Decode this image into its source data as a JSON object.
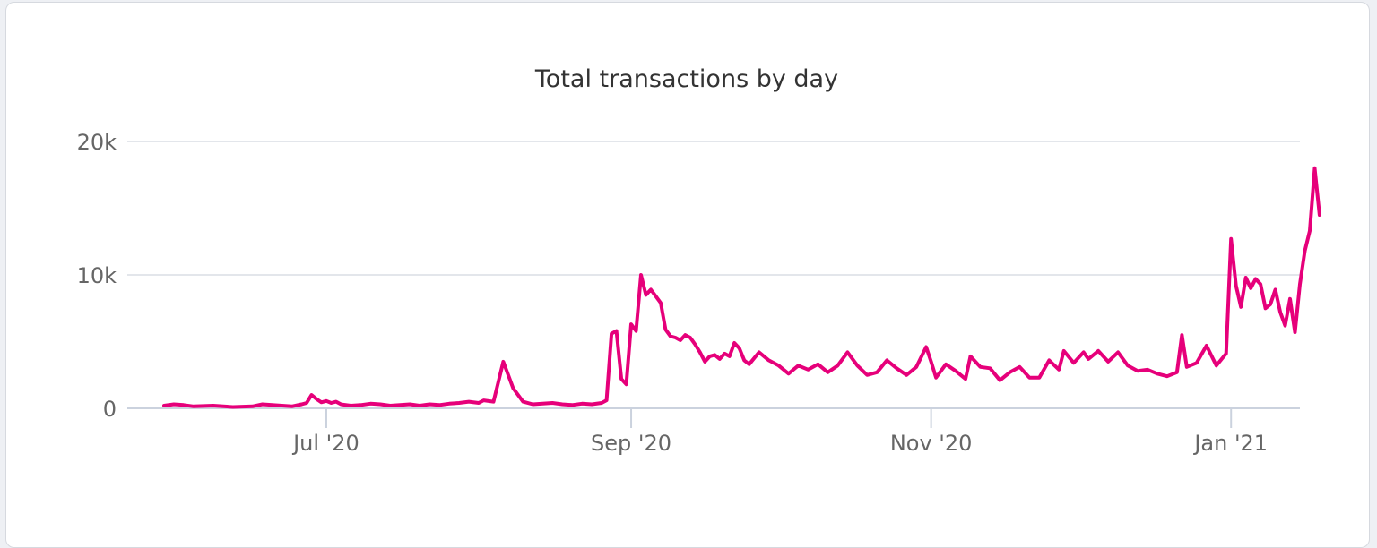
{
  "chart_data": {
    "type": "line",
    "title": "Total transactions by day",
    "xlabel": "",
    "ylabel": "",
    "x_range": [
      "2020-05-27",
      "2021-01-15"
    ],
    "ylim": [
      0,
      20000
    ],
    "y_ticks": [
      0,
      10000,
      20000
    ],
    "y_tick_labels": [
      "0",
      "10k",
      "20k"
    ],
    "x_ticks": [
      "2020-07-01",
      "2020-09-01",
      "2020-11-01",
      "2021-01-01"
    ],
    "x_tick_labels": [
      "Jul '20",
      "Sep '20",
      "Nov '20",
      "Jan '21"
    ],
    "grid": true,
    "legend": "none",
    "line_color": "#e6007a",
    "series": [
      {
        "points": [
          [
            "2020-05-29",
            200
          ],
          [
            "2020-05-31",
            300
          ],
          [
            "2020-06-02",
            250
          ],
          [
            "2020-06-04",
            150
          ],
          [
            "2020-06-08",
            200
          ],
          [
            "2020-06-12",
            100
          ],
          [
            "2020-06-16",
            150
          ],
          [
            "2020-06-18",
            300
          ],
          [
            "2020-06-22",
            200
          ],
          [
            "2020-06-24",
            150
          ],
          [
            "2020-06-26",
            300
          ],
          [
            "2020-06-27",
            400
          ],
          [
            "2020-06-28",
            1000
          ],
          [
            "2020-06-29",
            700
          ],
          [
            "2020-06-30",
            450
          ],
          [
            "2020-07-01",
            550
          ],
          [
            "2020-07-02",
            400
          ],
          [
            "2020-07-03",
            500
          ],
          [
            "2020-07-04",
            300
          ],
          [
            "2020-07-06",
            200
          ],
          [
            "2020-07-08",
            250
          ],
          [
            "2020-07-10",
            350
          ],
          [
            "2020-07-12",
            300
          ],
          [
            "2020-07-14",
            200
          ],
          [
            "2020-07-16",
            250
          ],
          [
            "2020-07-18",
            300
          ],
          [
            "2020-07-20",
            200
          ],
          [
            "2020-07-22",
            300
          ],
          [
            "2020-07-24",
            250
          ],
          [
            "2020-07-26",
            350
          ],
          [
            "2020-07-28",
            400
          ],
          [
            "2020-07-30",
            500
          ],
          [
            "2020-08-01",
            400
          ],
          [
            "2020-08-02",
            600
          ],
          [
            "2020-08-04",
            500
          ],
          [
            "2020-08-06",
            3500
          ],
          [
            "2020-08-08",
            1500
          ],
          [
            "2020-08-10",
            500
          ],
          [
            "2020-08-12",
            300
          ],
          [
            "2020-08-14",
            350
          ],
          [
            "2020-08-16",
            400
          ],
          [
            "2020-08-18",
            300
          ],
          [
            "2020-08-20",
            250
          ],
          [
            "2020-08-22",
            350
          ],
          [
            "2020-08-24",
            300
          ],
          [
            "2020-08-26",
            400
          ],
          [
            "2020-08-27",
            600
          ],
          [
            "2020-08-28",
            5600
          ],
          [
            "2020-08-29",
            5800
          ],
          [
            "2020-08-30",
            2200
          ],
          [
            "2020-08-31",
            1800
          ],
          [
            "2020-09-01",
            6300
          ],
          [
            "2020-09-02",
            5800
          ],
          [
            "2020-09-03",
            10000
          ],
          [
            "2020-09-04",
            8500
          ],
          [
            "2020-09-05",
            8900
          ],
          [
            "2020-09-06",
            8400
          ],
          [
            "2020-09-07",
            7900
          ],
          [
            "2020-09-08",
            5900
          ],
          [
            "2020-09-09",
            5400
          ],
          [
            "2020-09-10",
            5300
          ],
          [
            "2020-09-11",
            5100
          ],
          [
            "2020-09-12",
            5500
          ],
          [
            "2020-09-13",
            5300
          ],
          [
            "2020-09-14",
            4800
          ],
          [
            "2020-09-15",
            4200
          ],
          [
            "2020-09-16",
            3500
          ],
          [
            "2020-09-17",
            3900
          ],
          [
            "2020-09-18",
            4000
          ],
          [
            "2020-09-19",
            3700
          ],
          [
            "2020-09-20",
            4100
          ],
          [
            "2020-09-21",
            3900
          ],
          [
            "2020-09-22",
            4900
          ],
          [
            "2020-09-23",
            4500
          ],
          [
            "2020-09-24",
            3600
          ],
          [
            "2020-09-25",
            3300
          ],
          [
            "2020-09-27",
            4200
          ],
          [
            "2020-09-29",
            3600
          ],
          [
            "2020-10-01",
            3200
          ],
          [
            "2020-10-03",
            2600
          ],
          [
            "2020-10-05",
            3200
          ],
          [
            "2020-10-07",
            2900
          ],
          [
            "2020-10-09",
            3300
          ],
          [
            "2020-10-11",
            2700
          ],
          [
            "2020-10-13",
            3200
          ],
          [
            "2020-10-15",
            4200
          ],
          [
            "2020-10-17",
            3200
          ],
          [
            "2020-10-19",
            2500
          ],
          [
            "2020-10-21",
            2700
          ],
          [
            "2020-10-23",
            3600
          ],
          [
            "2020-10-25",
            3000
          ],
          [
            "2020-10-27",
            2500
          ],
          [
            "2020-10-29",
            3100
          ],
          [
            "2020-10-31",
            4600
          ],
          [
            "2020-11-01",
            3500
          ],
          [
            "2020-11-02",
            2300
          ],
          [
            "2020-11-04",
            3300
          ],
          [
            "2020-11-06",
            2800
          ],
          [
            "2020-11-08",
            2200
          ],
          [
            "2020-11-09",
            3900
          ],
          [
            "2020-11-11",
            3100
          ],
          [
            "2020-11-13",
            3000
          ],
          [
            "2020-11-15",
            2100
          ],
          [
            "2020-11-17",
            2700
          ],
          [
            "2020-11-19",
            3100
          ],
          [
            "2020-11-21",
            2300
          ],
          [
            "2020-11-23",
            2300
          ],
          [
            "2020-11-25",
            3600
          ],
          [
            "2020-11-27",
            2900
          ],
          [
            "2020-11-28",
            4300
          ],
          [
            "2020-11-30",
            3400
          ],
          [
            "2020-12-02",
            4200
          ],
          [
            "2020-12-03",
            3700
          ],
          [
            "2020-12-05",
            4300
          ],
          [
            "2020-12-07",
            3500
          ],
          [
            "2020-12-09",
            4200
          ],
          [
            "2020-12-11",
            3200
          ],
          [
            "2020-12-13",
            2800
          ],
          [
            "2020-12-15",
            2900
          ],
          [
            "2020-12-17",
            2600
          ],
          [
            "2020-12-19",
            2400
          ],
          [
            "2020-12-21",
            2700
          ],
          [
            "2020-12-22",
            5500
          ],
          [
            "2020-12-23",
            3100
          ],
          [
            "2020-12-25",
            3400
          ],
          [
            "2020-12-27",
            4700
          ],
          [
            "2020-12-29",
            3200
          ],
          [
            "2020-12-31",
            4100
          ],
          [
            "2021-01-01",
            12700
          ],
          [
            "2021-01-02",
            9200
          ],
          [
            "2021-01-03",
            7600
          ],
          [
            "2021-01-04",
            9800
          ],
          [
            "2021-01-05",
            9000
          ],
          [
            "2021-01-06",
            9700
          ],
          [
            "2021-01-07",
            9300
          ],
          [
            "2021-01-08",
            7500
          ],
          [
            "2021-01-09",
            7800
          ],
          [
            "2021-01-10",
            8900
          ],
          [
            "2021-01-11",
            7200
          ],
          [
            "2021-01-12",
            6200
          ],
          [
            "2021-01-13",
            8200
          ],
          [
            "2021-01-14",
            5700
          ],
          [
            "2021-01-15",
            9300
          ],
          [
            "2021-01-16",
            11800
          ],
          [
            "2021-01-17",
            13300
          ],
          [
            "2021-01-18",
            18000
          ],
          [
            "2021-01-19",
            14500
          ]
        ]
      }
    ]
  }
}
